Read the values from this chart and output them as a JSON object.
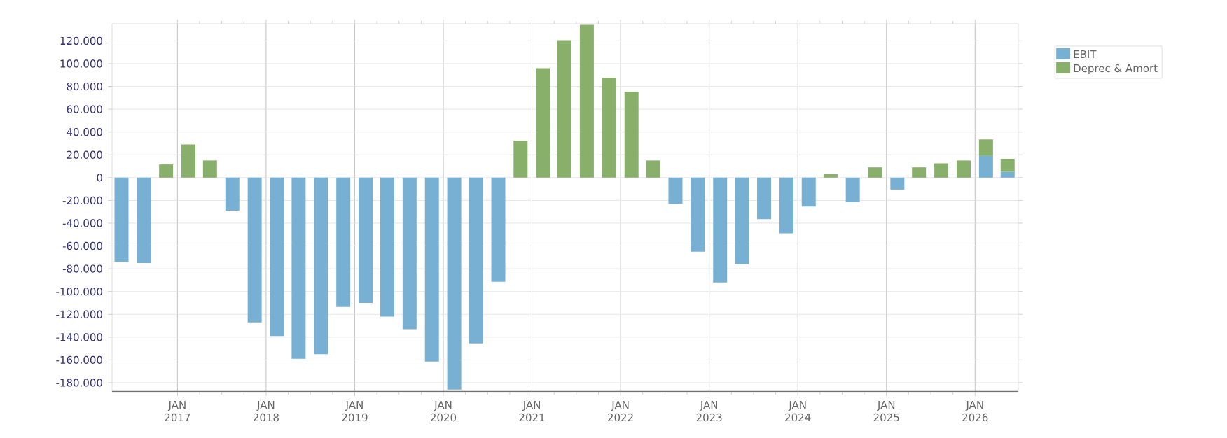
{
  "chart_data": {
    "type": "bar",
    "stacked": true,
    "x": [
      "2016-05-15",
      "2016-08-15",
      "2016-11-15",
      "2017-02-15",
      "2017-05-15",
      "2017-08-15",
      "2017-11-15",
      "2018-02-15",
      "2018-05-15",
      "2018-08-15",
      "2018-11-15",
      "2019-02-15",
      "2019-05-15",
      "2019-08-15",
      "2019-11-15",
      "2020-02-15",
      "2020-05-15",
      "2020-08-15",
      "2020-11-15",
      "2021-02-15",
      "2021-05-15",
      "2021-08-15",
      "2021-11-15",
      "2022-02-15",
      "2022-05-15",
      "2022-08-15",
      "2022-11-15",
      "2023-02-15",
      "2023-05-15",
      "2023-08-15",
      "2023-11-15",
      "2024-02-15",
      "2024-05-15",
      "2024-08-15",
      "2024-11-15",
      "2025-02-15",
      "2025-05-15",
      "2025-08-15",
      "2025-11-15",
      "2026-02-15",
      "2026-05-15"
    ],
    "series": [
      {
        "name": "EBIT",
        "color": "#77b0d2",
        "values": [
          -74000,
          -75000,
          0,
          0,
          0,
          -29000,
          -127000,
          -139000,
          -159000,
          -155000,
          -113500,
          -110000,
          -122000,
          -133000,
          -161500,
          -186000,
          -145500,
          -91500,
          0,
          0,
          0,
          0,
          0,
          0,
          0,
          -23000,
          -65000,
          -92000,
          -76000,
          -36500,
          -49000,
          -25500,
          0,
          -21500,
          0,
          -10500,
          0,
          0,
          0,
          19000,
          5000
        ]
      },
      {
        "name": "Deprec & Amort",
        "color": "#88b06a",
        "values": [
          0,
          0,
          11500,
          29000,
          15000,
          0,
          0,
          0,
          0,
          0,
          0,
          0,
          0,
          0,
          0,
          0,
          0,
          0,
          32500,
          96000,
          120500,
          134000,
          87500,
          75500,
          15000,
          0,
          0,
          0,
          0,
          0,
          0,
          0,
          3000,
          0,
          9000,
          0,
          9000,
          12500,
          15000,
          14500,
          11500
        ]
      }
    ],
    "xlim": [
      "2016-04-06",
      "2026-06-28"
    ],
    "xticks": [
      {
        "value": "2017-01-01",
        "label": "JAN 2017"
      },
      {
        "value": "2018-01-01",
        "label": "JAN 2018"
      },
      {
        "value": "2019-01-01",
        "label": "JAN 2019"
      },
      {
        "value": "2020-01-01",
        "label": "JAN 2020"
      },
      {
        "value": "2021-01-01",
        "label": "JAN 2021"
      },
      {
        "value": "2022-01-01",
        "label": "JAN 2022"
      },
      {
        "value": "2023-01-01",
        "label": "JAN 2023"
      },
      {
        "value": "2024-01-01",
        "label": "JAN 2024"
      },
      {
        "value": "2025-01-01",
        "label": "JAN 2025"
      },
      {
        "value": "2026-01-01",
        "label": "JAN 2026"
      }
    ],
    "ylim": [
      -188000,
      135000
    ],
    "yticks": [
      {
        "value": 120000,
        "label": "120.000"
      },
      {
        "value": 100000,
        "label": "100.000"
      },
      {
        "value": 80000,
        "label": "80.000"
      },
      {
        "value": 60000,
        "label": "60.000"
      },
      {
        "value": 40000,
        "label": "40.000"
      },
      {
        "value": 20000,
        "label": "20.000"
      },
      {
        "value": 0,
        "label": "0"
      },
      {
        "value": -20000,
        "label": "-20.000"
      },
      {
        "value": -40000,
        "label": "-40.000"
      },
      {
        "value": -60000,
        "label": "-60.000"
      },
      {
        "value": -80000,
        "label": "-80.000"
      },
      {
        "value": -100000,
        "label": "-100.000"
      },
      {
        "value": -120000,
        "label": "-120.000"
      },
      {
        "value": -140000,
        "label": "-140.000"
      },
      {
        "value": -160000,
        "label": "-160.000"
      },
      {
        "value": -180000,
        "label": "-180.000"
      }
    ],
    "grid": true,
    "legend": "top right"
  }
}
